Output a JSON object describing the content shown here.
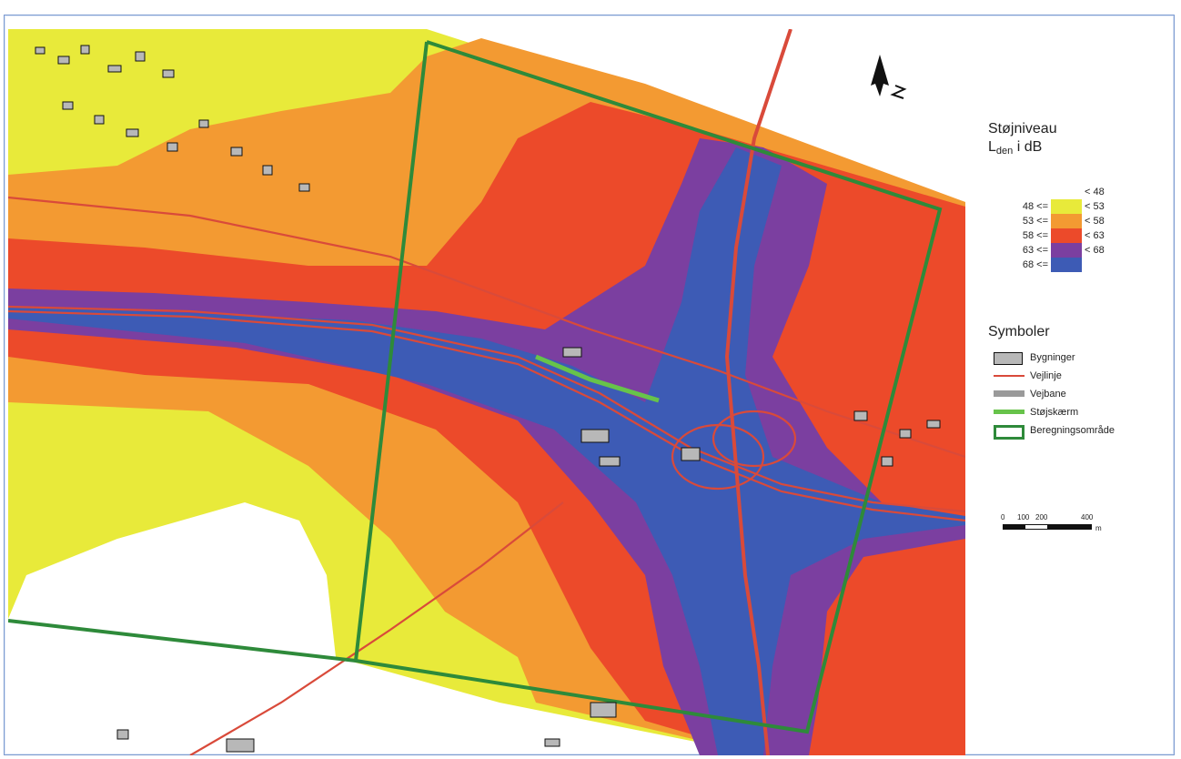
{
  "legend": {
    "title": "Støjniveau",
    "subtitle_main": "L",
    "subtitle_sub": "den",
    "subtitle_unit": " i dB",
    "top_label": "< 48",
    "levels": [
      {
        "low": "48 <=",
        "high": "< 53",
        "color": "#e8ea3a"
      },
      {
        "low": "53 <=",
        "high": "< 58",
        "color": "#f39a32"
      },
      {
        "low": "58 <=",
        "high": "< 63",
        "color": "#ec4a2a"
      },
      {
        "low": "63 <=",
        "high": "< 68",
        "color": "#7b3fa0"
      },
      {
        "low": "68 <=",
        "high": "",
        "color": "#3d5bb5"
      }
    ],
    "symbols_title": "Symboler",
    "symbols": [
      {
        "label": "Bygninger",
        "type": "building"
      },
      {
        "label": "Vejlinje",
        "type": "road-line"
      },
      {
        "label": "Vejbane",
        "type": "carriageway"
      },
      {
        "label": "Støjskærm",
        "type": "noise-barrier"
      },
      {
        "label": "Beregningsområde",
        "type": "calc-area"
      }
    ],
    "scale": {
      "labels": [
        "0",
        "100",
        "200",
        "400"
      ],
      "unit": "m"
    }
  },
  "colors": {
    "frame": "#7b9ad0",
    "calc_area": "#2e8a3a",
    "road": "#d94a3a",
    "barrier": "#67c34a",
    "building_fill": "#b8b8b8"
  },
  "icons": {
    "north_arrow": "north-arrow-icon"
  }
}
